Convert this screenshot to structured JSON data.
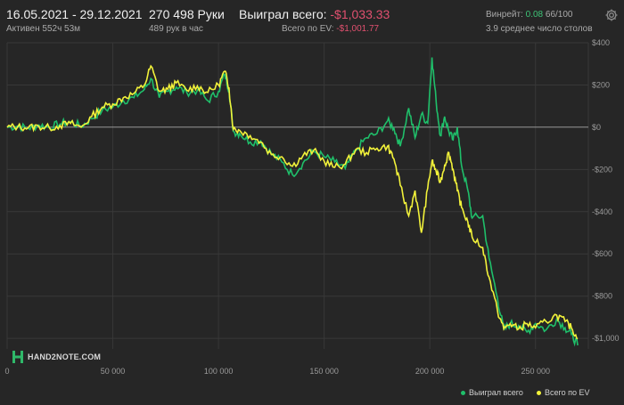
{
  "header": {
    "date_range": "16.05.2021 - 29.12.2021",
    "active_time": "Активен 552ч 53м",
    "hands": "270 498 Руки",
    "hands_per_hour": "489 рук в час",
    "won_total_label": "Выиграл всего:",
    "won_total_value": "-$1,033.33",
    "ev_total_label": "Всего по EV:",
    "ev_total_value": "-$1,001.77",
    "winrate_label": "Винрейт:",
    "winrate_value": "0.08",
    "winrate_count": "66/100",
    "avg_tables": "3.9 среднее число столов"
  },
  "logo": {
    "text": "HAND2NOTE.COM"
  },
  "legend": {
    "won": "Выиграл всего",
    "ev": "Всего по EV"
  },
  "colors": {
    "won": "#1fbf6a",
    "ev": "#f2f23a",
    "background": "#262626",
    "negative": "#e0506f"
  },
  "icons": {
    "settings": "gear-icon",
    "logo": "h2n-logo-icon"
  },
  "chart_data": {
    "type": "line",
    "xlabel": "",
    "ylabel": "",
    "xlim": [
      0,
      275000
    ],
    "ylim": [
      -1050,
      400
    ],
    "x_ticks": [
      0,
      50000,
      100000,
      150000,
      200000,
      250000
    ],
    "x_tick_labels": [
      "0",
      "50 000",
      "100 000",
      "150 000",
      "200 000",
      "250 000"
    ],
    "y_ticks": [
      400,
      200,
      0,
      -200,
      -400,
      -600,
      -800,
      -1000
    ],
    "y_tick_labels": [
      "$400",
      "$200",
      "$0",
      "-$200",
      "-$400",
      "-$600",
      "-$800",
      "-$1,000"
    ],
    "grid": true,
    "legend_position": "bottom-right",
    "series": [
      {
        "name": "Выиграл всего",
        "points": [
          [
            0,
            0
          ],
          [
            5000,
            5
          ],
          [
            10000,
            -5
          ],
          [
            15000,
            10
          ],
          [
            20000,
            0
          ],
          [
            25000,
            15
          ],
          [
            30000,
            25
          ],
          [
            35000,
            5
          ],
          [
            40000,
            40
          ],
          [
            45000,
            80
          ],
          [
            50000,
            95
          ],
          [
            55000,
            125
          ],
          [
            60000,
            140
          ],
          [
            65000,
            180
          ],
          [
            68000,
            230
          ],
          [
            72000,
            140
          ],
          [
            76000,
            170
          ],
          [
            80000,
            190
          ],
          [
            85000,
            165
          ],
          [
            90000,
            175
          ],
          [
            95000,
            125
          ],
          [
            100000,
            170
          ],
          [
            103000,
            250
          ],
          [
            105000,
            175
          ],
          [
            107000,
            -20
          ],
          [
            110000,
            -30
          ],
          [
            115000,
            -70
          ],
          [
            120000,
            -65
          ],
          [
            125000,
            -125
          ],
          [
            130000,
            -165
          ],
          [
            135000,
            -225
          ],
          [
            140000,
            -170
          ],
          [
            145000,
            -115
          ],
          [
            150000,
            -140
          ],
          [
            155000,
            -165
          ],
          [
            160000,
            -195
          ],
          [
            165000,
            -110
          ],
          [
            170000,
            -50
          ],
          [
            175000,
            -30
          ],
          [
            180000,
            30
          ],
          [
            183000,
            -5
          ],
          [
            186000,
            -90
          ],
          [
            190000,
            90
          ],
          [
            193000,
            -50
          ],
          [
            196000,
            60
          ],
          [
            199000,
            20
          ],
          [
            201000,
            330
          ],
          [
            203000,
            120
          ],
          [
            205000,
            -40
          ],
          [
            207000,
            50
          ],
          [
            209000,
            -20
          ],
          [
            211000,
            -60
          ],
          [
            213000,
            0
          ],
          [
            215000,
            -180
          ],
          [
            218000,
            -300
          ],
          [
            220000,
            -430
          ],
          [
            225000,
            -420
          ],
          [
            228000,
            -620
          ],
          [
            232000,
            -810
          ],
          [
            235000,
            -960
          ],
          [
            238000,
            -930
          ],
          [
            242000,
            -940
          ],
          [
            246000,
            -970
          ],
          [
            250000,
            -930
          ],
          [
            255000,
            -960
          ],
          [
            260000,
            -910
          ],
          [
            264000,
            -950
          ],
          [
            267000,
            -980
          ],
          [
            270000,
            -1033
          ]
        ]
      },
      {
        "name": "Всего по EV",
        "points": [
          [
            0,
            0
          ],
          [
            5000,
            2
          ],
          [
            10000,
            -2
          ],
          [
            15000,
            4
          ],
          [
            20000,
            -3
          ],
          [
            25000,
            8
          ],
          [
            30000,
            18
          ],
          [
            35000,
            0
          ],
          [
            40000,
            50
          ],
          [
            45000,
            95
          ],
          [
            50000,
            110
          ],
          [
            55000,
            140
          ],
          [
            60000,
            160
          ],
          [
            65000,
            200
          ],
          [
            68000,
            290
          ],
          [
            72000,
            170
          ],
          [
            76000,
            180
          ],
          [
            80000,
            210
          ],
          [
            85000,
            175
          ],
          [
            90000,
            195
          ],
          [
            95000,
            165
          ],
          [
            100000,
            200
          ],
          [
            103000,
            265
          ],
          [
            105000,
            185
          ],
          [
            107000,
            -10
          ],
          [
            110000,
            -15
          ],
          [
            115000,
            -40
          ],
          [
            120000,
            -70
          ],
          [
            125000,
            -130
          ],
          [
            130000,
            -140
          ],
          [
            135000,
            -185
          ],
          [
            140000,
            -135
          ],
          [
            145000,
            -110
          ],
          [
            150000,
            -160
          ],
          [
            155000,
            -190
          ],
          [
            160000,
            -175
          ],
          [
            165000,
            -105
          ],
          [
            170000,
            -120
          ],
          [
            175000,
            -100
          ],
          [
            180000,
            -90
          ],
          [
            183000,
            -150
          ],
          [
            186000,
            -275
          ],
          [
            190000,
            -420
          ],
          [
            193000,
            -300
          ],
          [
            196000,
            -500
          ],
          [
            199000,
            -290
          ],
          [
            201000,
            -160
          ],
          [
            203000,
            -210
          ],
          [
            205000,
            -260
          ],
          [
            207000,
            -180
          ],
          [
            209000,
            -120
          ],
          [
            211000,
            -200
          ],
          [
            213000,
            -300
          ],
          [
            215000,
            -380
          ],
          [
            218000,
            -450
          ],
          [
            220000,
            -520
          ],
          [
            225000,
            -570
          ],
          [
            228000,
            -710
          ],
          [
            232000,
            -870
          ],
          [
            235000,
            -955
          ],
          [
            238000,
            -930
          ],
          [
            242000,
            -955
          ],
          [
            246000,
            -930
          ],
          [
            250000,
            -950
          ],
          [
            255000,
            -920
          ],
          [
            260000,
            -890
          ],
          [
            264000,
            -920
          ],
          [
            267000,
            -950
          ],
          [
            270000,
            -1002
          ]
        ]
      }
    ]
  }
}
